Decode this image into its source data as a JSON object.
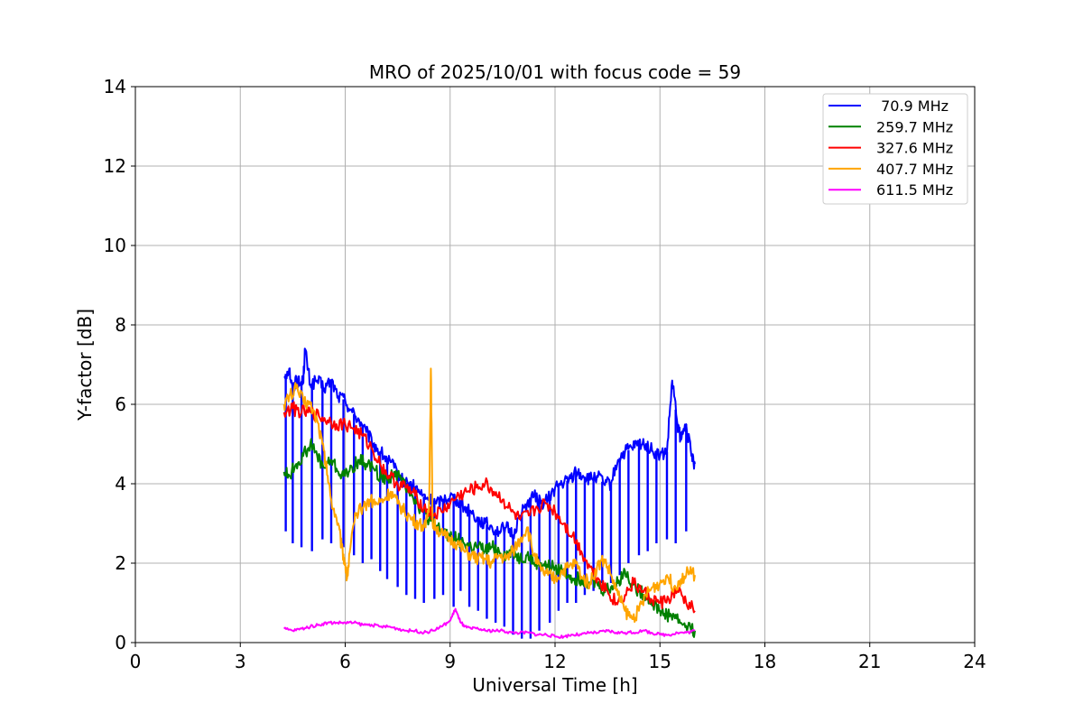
{
  "chart_data": {
    "type": "line",
    "title": "MRO of 2025/10/01 with focus code = 59",
    "xlabel": "Universal Time [h]",
    "ylabel": "Y-factor [dB]",
    "xlim": [
      0,
      24
    ],
    "ylim": [
      0,
      14
    ],
    "xticks": [
      0,
      3,
      6,
      9,
      12,
      15,
      18,
      21,
      24
    ],
    "yticks": [
      0,
      2,
      4,
      6,
      8,
      10,
      12,
      14
    ],
    "grid": true,
    "legend_position": "top-right",
    "series": [
      {
        "name": " 70.9 MHz",
        "color": "#0000ff",
        "x": [
          4.25,
          4.4,
          4.5,
          4.6,
          4.7,
          4.8,
          4.85,
          5.0,
          5.2,
          5.4,
          5.6,
          5.8,
          6.0,
          6.2,
          6.4,
          6.6,
          6.8,
          7.0,
          7.2,
          7.4,
          7.6,
          7.8,
          8.0,
          8.2,
          8.4,
          8.6,
          8.8,
          9.0,
          9.2,
          9.4,
          9.6,
          9.8,
          10.0,
          10.2,
          10.4,
          10.6,
          10.8,
          11.0,
          11.2,
          11.4,
          11.6,
          11.8,
          12.0,
          12.2,
          12.4,
          12.6,
          12.8,
          13.0,
          13.2,
          13.4,
          13.6,
          13.8,
          14.0,
          14.2,
          14.4,
          14.6,
          14.8,
          15.0,
          15.2,
          15.35,
          15.5,
          15.6,
          15.75,
          15.9,
          16.0
        ],
        "values": [
          6.7,
          6.9,
          6.3,
          6.7,
          6.5,
          6.6,
          7.4,
          6.5,
          6.6,
          6.4,
          6.6,
          6.2,
          6.1,
          5.8,
          5.6,
          5.3,
          5.0,
          4.8,
          4.6,
          4.4,
          4.1,
          4.0,
          3.9,
          3.7,
          3.6,
          3.5,
          3.6,
          3.7,
          3.6,
          3.4,
          3.3,
          3.1,
          3.0,
          2.9,
          2.8,
          2.9,
          2.7,
          3.2,
          3.5,
          3.7,
          3.5,
          3.6,
          3.9,
          4.0,
          4.1,
          4.3,
          4.2,
          4.1,
          4.2,
          4.0,
          4.0,
          4.6,
          4.8,
          4.9,
          5.0,
          5.0,
          4.8,
          4.7,
          4.8,
          6.6,
          5.5,
          5.1,
          5.5,
          4.7,
          4.5
        ],
        "spikes_x": [
          4.3,
          4.5,
          4.75,
          5.05,
          5.35,
          5.6,
          5.95,
          6.25,
          6.5,
          6.75,
          7.0,
          7.2,
          7.5,
          7.75,
          8.0,
          8.25,
          8.55,
          8.8,
          9.1,
          9.3,
          9.55,
          9.8,
          10.05,
          10.3,
          10.55,
          10.8,
          11.05,
          11.3,
          11.55,
          11.85,
          12.1,
          12.35,
          12.6,
          12.85,
          13.1,
          13.35,
          13.6,
          13.85,
          14.1,
          14.4,
          14.65,
          14.9,
          15.2,
          15.45,
          15.75
        ],
        "spikes_low": [
          2.8,
          2.5,
          2.4,
          2.3,
          2.6,
          2.5,
          2.4,
          2.2,
          2.0,
          2.1,
          1.8,
          1.6,
          1.4,
          1.2,
          1.1,
          1.0,
          1.1,
          1.2,
          0.9,
          1.3,
          0.9,
          0.8,
          0.6,
          0.5,
          0.4,
          0.2,
          0.1,
          0.1,
          0.3,
          0.5,
          0.8,
          1.0,
          1.0,
          1.2,
          1.3,
          1.5,
          1.5,
          1.7,
          2.0,
          2.2,
          2.3,
          2.5,
          2.6,
          2.5,
          2.8
        ]
      },
      {
        "name": "259.7 MHz",
        "color": "#008000",
        "x": [
          4.25,
          4.4,
          4.6,
          4.8,
          5.0,
          5.2,
          5.4,
          5.6,
          5.8,
          6.0,
          6.2,
          6.4,
          6.6,
          6.8,
          7.0,
          7.2,
          7.4,
          7.6,
          7.8,
          8.0,
          8.2,
          8.4,
          8.6,
          8.8,
          9.0,
          9.2,
          9.4,
          9.6,
          9.8,
          10.0,
          10.2,
          10.4,
          10.6,
          10.8,
          11.0,
          11.2,
          11.4,
          11.6,
          11.8,
          12.0,
          12.2,
          12.4,
          12.6,
          12.8,
          13.0,
          13.2,
          13.4,
          13.6,
          13.8,
          14.0,
          14.2,
          14.4,
          14.6,
          14.8,
          15.0,
          15.2,
          15.4,
          15.6,
          15.8,
          16.0
        ],
        "values": [
          4.3,
          4.2,
          4.5,
          4.7,
          5.0,
          4.7,
          4.4,
          4.6,
          4.3,
          4.2,
          4.4,
          4.6,
          4.5,
          4.4,
          4.2,
          4.1,
          4.3,
          4.1,
          3.9,
          3.6,
          3.3,
          3.1,
          2.9,
          2.8,
          2.7,
          2.6,
          2.5,
          2.4,
          2.4,
          2.3,
          2.4,
          2.3,
          2.2,
          2.3,
          2.1,
          2.2,
          2.0,
          2.0,
          1.9,
          1.9,
          1.8,
          1.7,
          1.6,
          1.6,
          1.5,
          1.5,
          1.3,
          1.4,
          1.5,
          1.8,
          1.5,
          1.3,
          1.2,
          1.0,
          0.8,
          0.7,
          0.7,
          0.5,
          0.4,
          0.3
        ]
      },
      {
        "name": "327.6 MHz",
        "color": "#ff0000",
        "x": [
          4.25,
          4.5,
          4.75,
          5.0,
          5.25,
          5.5,
          5.75,
          6.0,
          6.25,
          6.5,
          6.75,
          7.0,
          7.25,
          7.5,
          7.75,
          8.0,
          8.25,
          8.5,
          8.75,
          9.0,
          9.25,
          9.5,
          9.75,
          10.0,
          10.25,
          10.5,
          10.75,
          11.0,
          11.25,
          11.5,
          11.75,
          12.0,
          12.25,
          12.5,
          12.75,
          13.0,
          13.25,
          13.5,
          13.75,
          14.0,
          14.25,
          14.5,
          14.75,
          15.0,
          15.25,
          15.5,
          15.75,
          16.0
        ],
        "values": [
          5.8,
          5.9,
          5.8,
          5.8,
          5.7,
          5.6,
          5.5,
          5.5,
          5.4,
          5.2,
          4.9,
          4.5,
          4.2,
          4.0,
          3.9,
          3.7,
          3.4,
          3.2,
          3.3,
          3.5,
          3.7,
          3.8,
          3.9,
          4.0,
          3.8,
          3.6,
          3.3,
          3.1,
          3.2,
          3.4,
          3.5,
          3.3,
          3.0,
          2.7,
          2.3,
          1.9,
          1.6,
          1.3,
          1.0,
          1.2,
          1.5,
          1.3,
          1.1,
          1.0,
          1.1,
          1.3,
          1.0,
          0.8
        ]
      },
      {
        "name": "407.7 MHz",
        "color": "#ffa500",
        "x": [
          4.25,
          4.4,
          4.6,
          4.8,
          5.0,
          5.2,
          5.35,
          5.5,
          5.6,
          5.8,
          5.9,
          6.0,
          6.05,
          6.15,
          6.3,
          6.5,
          6.7,
          6.9,
          7.1,
          7.3,
          7.5,
          7.7,
          7.9,
          8.1,
          8.3,
          8.4,
          8.45,
          8.5,
          8.6,
          8.8,
          9.0,
          9.2,
          9.4,
          9.6,
          9.8,
          10.0,
          10.2,
          10.4,
          10.6,
          10.8,
          11.0,
          11.2,
          11.4,
          11.6,
          11.8,
          12.0,
          12.2,
          12.4,
          12.6,
          12.8,
          13.0,
          13.2,
          13.4,
          13.6,
          13.8,
          14.0,
          14.2,
          14.4,
          14.6,
          14.8,
          15.0,
          15.2,
          15.4,
          15.6,
          15.8,
          16.0
        ],
        "values": [
          6.0,
          6.2,
          6.4,
          6.1,
          6.0,
          5.6,
          5.0,
          4.2,
          3.6,
          3.0,
          2.4,
          2.0,
          1.6,
          2.4,
          3.2,
          3.4,
          3.6,
          3.5,
          3.6,
          3.8,
          3.5,
          3.3,
          3.1,
          3.0,
          2.9,
          3.5,
          6.9,
          3.0,
          2.9,
          2.7,
          2.6,
          2.5,
          2.3,
          2.2,
          2.1,
          2.1,
          2.0,
          2.2,
          2.1,
          2.3,
          2.6,
          2.9,
          2.2,
          1.8,
          1.7,
          1.6,
          1.8,
          1.9,
          2.0,
          1.6,
          1.5,
          1.9,
          2.1,
          1.7,
          1.2,
          0.8,
          0.6,
          0.8,
          1.2,
          1.4,
          1.5,
          1.7,
          1.4,
          1.6,
          1.8,
          1.7
        ]
      },
      {
        "name": "611.5 MHz",
        "color": "#ff00ff",
        "x": [
          4.25,
          4.5,
          4.75,
          5.0,
          5.25,
          5.5,
          5.75,
          6.0,
          6.25,
          6.5,
          6.75,
          7.0,
          7.25,
          7.5,
          7.75,
          8.0,
          8.25,
          8.5,
          8.75,
          9.0,
          9.15,
          9.25,
          9.4,
          9.6,
          9.8,
          10.0,
          10.25,
          10.5,
          10.75,
          11.0,
          11.25,
          11.5,
          11.75,
          12.0,
          12.25,
          12.5,
          12.75,
          13.0,
          13.25,
          13.5,
          13.75,
          14.0,
          14.25,
          14.5,
          14.75,
          15.0,
          15.25,
          15.5,
          15.75,
          16.0
        ],
        "values": [
          0.35,
          0.3,
          0.35,
          0.4,
          0.45,
          0.5,
          0.5,
          0.5,
          0.5,
          0.45,
          0.45,
          0.4,
          0.4,
          0.35,
          0.3,
          0.3,
          0.25,
          0.3,
          0.4,
          0.55,
          0.85,
          0.6,
          0.4,
          0.35,
          0.35,
          0.3,
          0.3,
          0.3,
          0.25,
          0.25,
          0.25,
          0.2,
          0.2,
          0.15,
          0.15,
          0.2,
          0.2,
          0.25,
          0.25,
          0.3,
          0.25,
          0.25,
          0.25,
          0.3,
          0.25,
          0.2,
          0.2,
          0.25,
          0.25,
          0.3
        ]
      }
    ]
  }
}
